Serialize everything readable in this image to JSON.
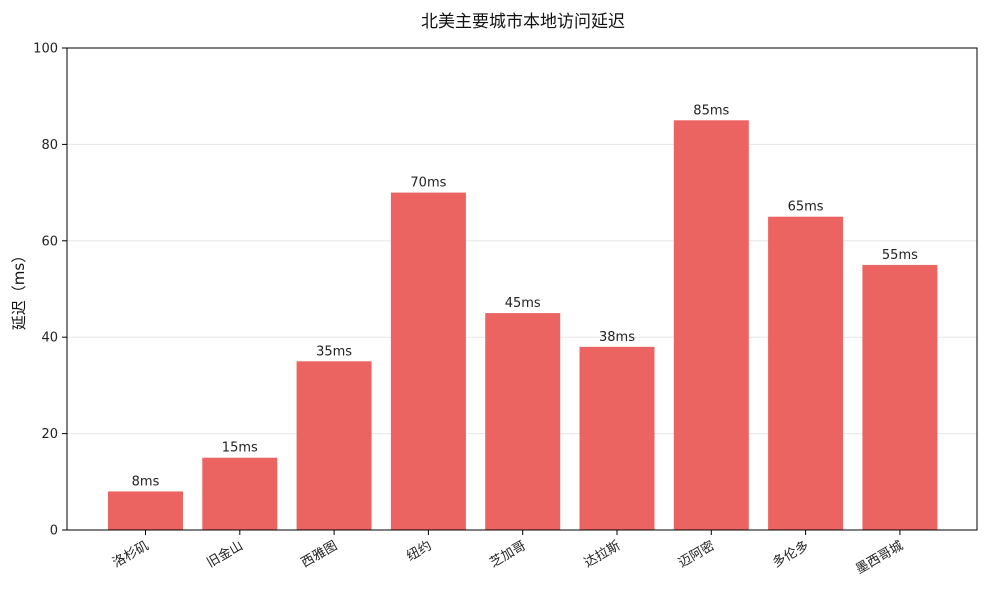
{
  "chart_data": {
    "type": "bar",
    "title": "北美主要城市本地访问延迟",
    "xlabel": "",
    "ylabel": "延迟（ms）",
    "categories": [
      "洛杉矶",
      "旧金山",
      "西雅图",
      "纽约",
      "芝加哥",
      "达拉斯",
      "迈阿密",
      "多伦多",
      "墨西哥城"
    ],
    "values": [
      8,
      15,
      35,
      70,
      45,
      38,
      85,
      65,
      55
    ],
    "value_labels": [
      "8ms",
      "15ms",
      "35ms",
      "70ms",
      "45ms",
      "38ms",
      "85ms",
      "65ms",
      "55ms"
    ],
    "ylim": [
      0,
      100
    ],
    "yticks": [
      0,
      20,
      40,
      60,
      80,
      100
    ],
    "ytick_labels": [
      "0",
      "20",
      "40",
      "60",
      "80",
      "100"
    ],
    "grid": "y",
    "legend": "none",
    "bar_color": "#eb6461",
    "grid_color": "#e6e6e6"
  }
}
